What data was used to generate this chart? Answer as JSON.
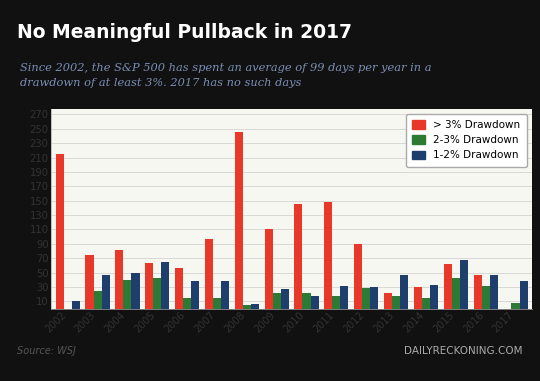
{
  "title": "No Meaningful Pullback in 2017",
  "subtitle": "Since 2002, the S&P 500 has spent an average of 99 days per year in a\ndrawdown of at least 3%. 2017 has no such days",
  "source": "Source: WSJ",
  "watermark": "DAILYRECKONING.COM",
  "years": [
    "2002",
    "2003",
    "2004",
    "2005",
    "2006",
    "2007",
    "2008",
    "2009",
    "2010",
    "2011",
    "2012",
    "2013",
    "2014",
    "2015",
    "2016",
    "2017"
  ],
  "gt3": [
    215,
    75,
    82,
    63,
    57,
    97,
    245,
    110,
    145,
    148,
    90,
    22,
    30,
    62,
    47,
    0
  ],
  "dd23": [
    0,
    25,
    40,
    43,
    15,
    15,
    5,
    22,
    22,
    18,
    28,
    18,
    15,
    43,
    32,
    8
  ],
  "dd12": [
    10,
    47,
    50,
    65,
    38,
    38,
    7,
    27,
    17,
    32,
    30,
    47,
    33,
    68,
    47,
    38
  ],
  "color_gt3": "#e8382a",
  "color_23": "#2d7a35",
  "color_12": "#1e3f6b",
  "plot_bg": "#f7f7f2",
  "title_color": "#ffffff",
  "title_bg": "#111111",
  "subtitle_color": "#7a8fb5",
  "yticks": [
    10,
    30,
    50,
    70,
    90,
    110,
    130,
    150,
    170,
    190,
    210,
    230,
    250,
    270
  ],
  "ylim": [
    0,
    278
  ],
  "outer_bg": "#111111",
  "inner_bg": "#ffffff"
}
